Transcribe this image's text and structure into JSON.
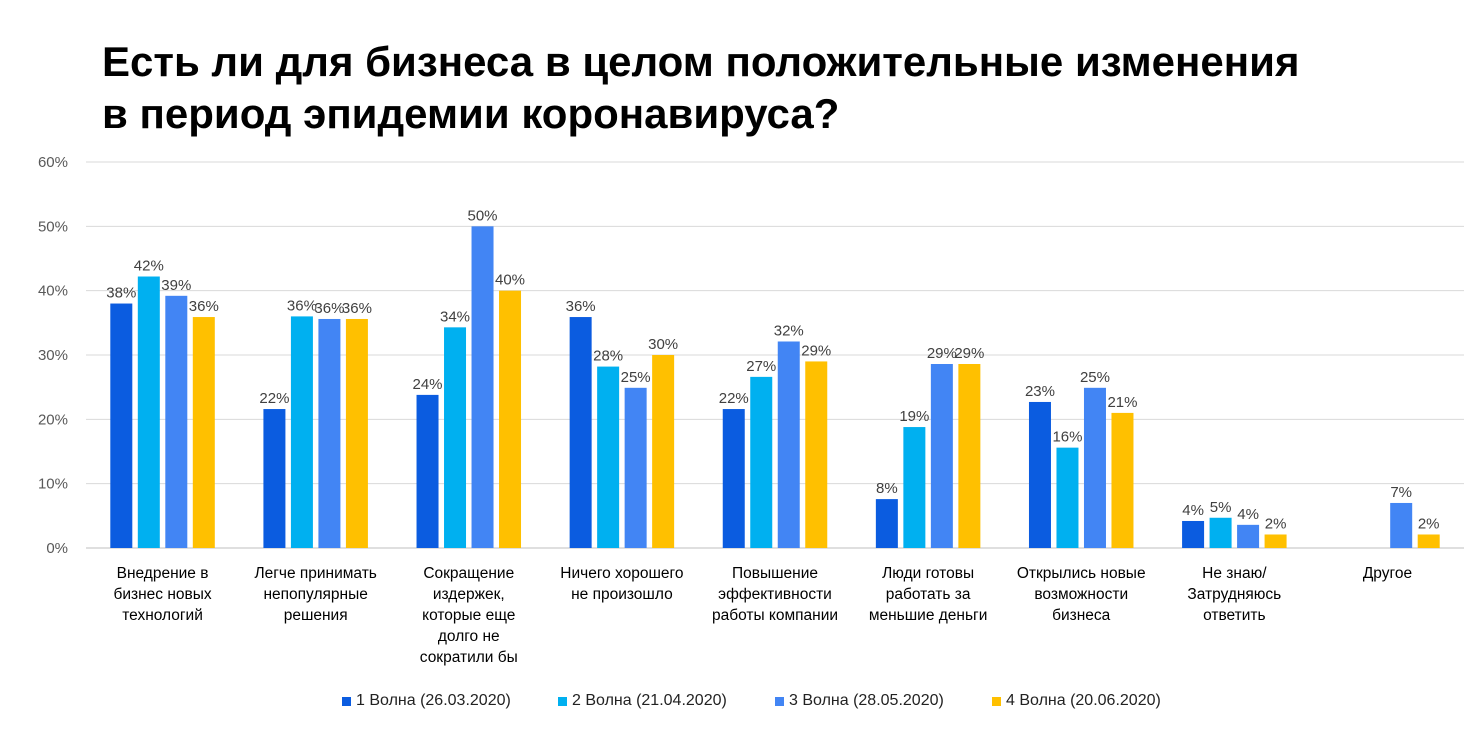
{
  "title": {
    "line1": "Есть ли для бизнеса в целом положительные изменения",
    "line2": "в период эпидемии коронавируса?"
  },
  "chart_data": {
    "type": "bar",
    "categories": [
      [
        "Внедрение в",
        "бизнес новых",
        "технологий"
      ],
      [
        "Легче принимать",
        "непопулярные",
        "решения"
      ],
      [
        "Сокращение",
        "издержек,",
        "которые еще",
        "долго не",
        "сократили бы"
      ],
      [
        "Ничего хорошего",
        "не произошло"
      ],
      [
        "Повышение",
        "эффективности",
        "работы компании"
      ],
      [
        "Люди готовы",
        "работать за",
        "меньшие деньги"
      ],
      [
        "Открылись новые",
        "возможности",
        "бизнеса"
      ],
      [
        "Не знаю/",
        "Затрудняюсь",
        "ответить"
      ],
      [
        "Другое"
      ]
    ],
    "series": [
      {
        "name": "1 Волна (26.03.2020)",
        "color": "#0b5ce0",
        "values": [
          38,
          21.6,
          23.8,
          35.9,
          21.6,
          7.6,
          22.7,
          4.2,
          null
        ],
        "labels": [
          "38%",
          "22%",
          "24%",
          "36%",
          "22%",
          "8%",
          "23%",
          "4%",
          ""
        ]
      },
      {
        "name": "2 Волна (21.04.2020)",
        "color": "#00b0f0",
        "values": [
          42.2,
          36,
          34.3,
          28.2,
          26.6,
          18.8,
          15.6,
          4.7,
          null
        ],
        "labels": [
          "42%",
          "36%",
          "34%",
          "28%",
          "27%",
          "19%",
          "16%",
          "5%",
          ""
        ]
      },
      {
        "name": "3 Волна (28.05.2020)",
        "color": "#4285f4",
        "values": [
          39.2,
          35.6,
          50,
          24.9,
          32.1,
          28.6,
          24.9,
          3.6,
          7
        ],
        "labels": [
          "39%",
          "36%",
          "50%",
          "25%",
          "32%",
          "29%",
          "25%",
          "4%",
          "7%"
        ]
      },
      {
        "name": "4 Волна (20.06.2020)",
        "color": "#ffc000",
        "values": [
          35.9,
          35.6,
          40,
          30,
          29,
          28.6,
          21,
          2.1,
          2.1
        ],
        "labels": [
          "36%",
          "36%",
          "40%",
          "30%",
          "29%",
          "29%",
          "21%",
          "2%",
          "2%"
        ]
      }
    ],
    "ylim": [
      0,
      60
    ],
    "yticks": [
      0,
      10,
      20,
      30,
      40,
      50,
      60
    ],
    "ytick_labels": [
      "0%",
      "10%",
      "20%",
      "30%",
      "40%",
      "50%",
      "60%"
    ],
    "grid": true,
    "legend_position": "bottom"
  }
}
